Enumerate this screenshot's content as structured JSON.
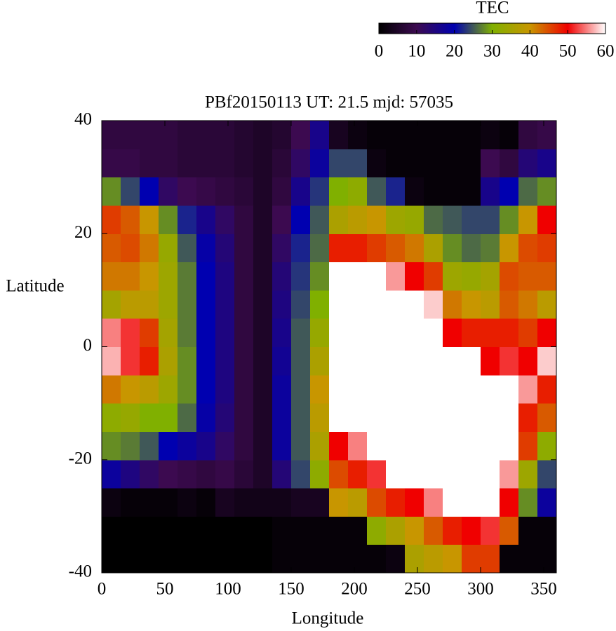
{
  "chart_data": {
    "type": "heatmap",
    "title": "PBf20150113  UT: 21.5  mjd: 57035",
    "xlabel": "Longitude",
    "ylabel": "Latitude",
    "colorbar_label": "TEC",
    "xlim": [
      0,
      360
    ],
    "xticks": [
      0,
      50,
      100,
      150,
      200,
      250,
      300,
      350
    ],
    "ylim": [
      -40,
      40
    ],
    "yticks": [
      -40,
      -20,
      0,
      20,
      40
    ],
    "zlim": [
      0,
      60
    ],
    "zticks": [
      0,
      10,
      20,
      30,
      40,
      50,
      60
    ],
    "colors": [
      "#000000",
      "#3c0a50",
      "#0000b0",
      "#80b000",
      "#c89600",
      "#f00000",
      "#ffffff"
    ],
    "x": [
      7.5,
      22.5,
      37.5,
      52.5,
      67.5,
      82.5,
      97.5,
      112.5,
      127.5,
      142.5,
      157.5,
      172.5,
      187.5,
      202.5,
      217.5,
      232.5,
      247.5,
      262.5,
      277.5,
      292.5,
      307.5,
      322.5,
      337.5,
      352.5
    ],
    "y": [
      -37.5,
      -32.5,
      -27.5,
      -22.5,
      -17.5,
      -12.5,
      -7.5,
      -2.5,
      2.5,
      7.5,
      12.5,
      17.5,
      22.5,
      27.5,
      32.5,
      37.5
    ],
    "values": [
      [
        0,
        0,
        0,
        0,
        0,
        0,
        0,
        0,
        0,
        1,
        1,
        1,
        1,
        1,
        1,
        2,
        36,
        38,
        40,
        46,
        46,
        1,
        1,
        1
      ],
      [
        0,
        0,
        0,
        0,
        0,
        0,
        0,
        0,
        0,
        1,
        1,
        1,
        1,
        1,
        32,
        36,
        40,
        44,
        48,
        50,
        52,
        44,
        1,
        1
      ],
      [
        2,
        1,
        1,
        1,
        2,
        1,
        4,
        3,
        3,
        3,
        4,
        4,
        40,
        38,
        45,
        48,
        50,
        55,
        60,
        60,
        60,
        50,
        28,
        18
      ],
      [
        18,
        15,
        12,
        10,
        9,
        8,
        9,
        7,
        5,
        14,
        24,
        32,
        45,
        48,
        52,
        60,
        60,
        60,
        60,
        60,
        60,
        56,
        34,
        24
      ],
      [
        28,
        27,
        25,
        20,
        18,
        16,
        12,
        8,
        5,
        18,
        25,
        36,
        50,
        55,
        60,
        60,
        60,
        60,
        60,
        60,
        60,
        60,
        46,
        32
      ],
      [
        32,
        33,
        30,
        30,
        26,
        19,
        14,
        8,
        5,
        18,
        25,
        38,
        60,
        60,
        60,
        60,
        60,
        60,
        60,
        60,
        60,
        60,
        48,
        44
      ],
      [
        42,
        40,
        38,
        34,
        28,
        20,
        15,
        8,
        5,
        18,
        25,
        40,
        60,
        60,
        60,
        60,
        60,
        60,
        60,
        60,
        60,
        60,
        56,
        48
      ],
      [
        57,
        52,
        48,
        36,
        28,
        20,
        15,
        8,
        5,
        17,
        25,
        36,
        60,
        60,
        60,
        60,
        60,
        60,
        60,
        60,
        50,
        52,
        50,
        58
      ],
      [
        55,
        52,
        46,
        35,
        27,
        20,
        15,
        8,
        5,
        16,
        25,
        33,
        60,
        60,
        60,
        60,
        60,
        60,
        50,
        48,
        48,
        48,
        46,
        50
      ],
      [
        35,
        38,
        38,
        34,
        27,
        20,
        15,
        8,
        5,
        15,
        24,
        30,
        60,
        60,
        60,
        60,
        60,
        58,
        42,
        40,
        38,
        44,
        42,
        38
      ],
      [
        42,
        42,
        40,
        34,
        27,
        20,
        15,
        8,
        5,
        14,
        23,
        28,
        60,
        60,
        60,
        56,
        50,
        46,
        34,
        33,
        35,
        45,
        44,
        44
      ],
      [
        44,
        45,
        42,
        33,
        25,
        19,
        14,
        8,
        5,
        12,
        22,
        26,
        48,
        48,
        46,
        44,
        42,
        36,
        28,
        26,
        27,
        40,
        45,
        46
      ],
      [
        46,
        44,
        40,
        28,
        22,
        16,
        12,
        8,
        5,
        10,
        20,
        25,
        36,
        38,
        40,
        34,
        33,
        26,
        25,
        24,
        24,
        28,
        40,
        50
      ],
      [
        28,
        24,
        20,
        12,
        10,
        9,
        8,
        7,
        5,
        8,
        16,
        23,
        30,
        32,
        25,
        22,
        2,
        1,
        1,
        1,
        16,
        20,
        26,
        28
      ],
      [
        9,
        9,
        8,
        8,
        7,
        7,
        7,
        6,
        5,
        7,
        12,
        18,
        24,
        24,
        2,
        1,
        1,
        1,
        1,
        1,
        10,
        8,
        14,
        16
      ],
      [
        8,
        8,
        8,
        8,
        7,
        7,
        7,
        6,
        5,
        6,
        10,
        16,
        4,
        2,
        1,
        1,
        1,
        1,
        1,
        1,
        2,
        1,
        8,
        9
      ]
    ]
  }
}
